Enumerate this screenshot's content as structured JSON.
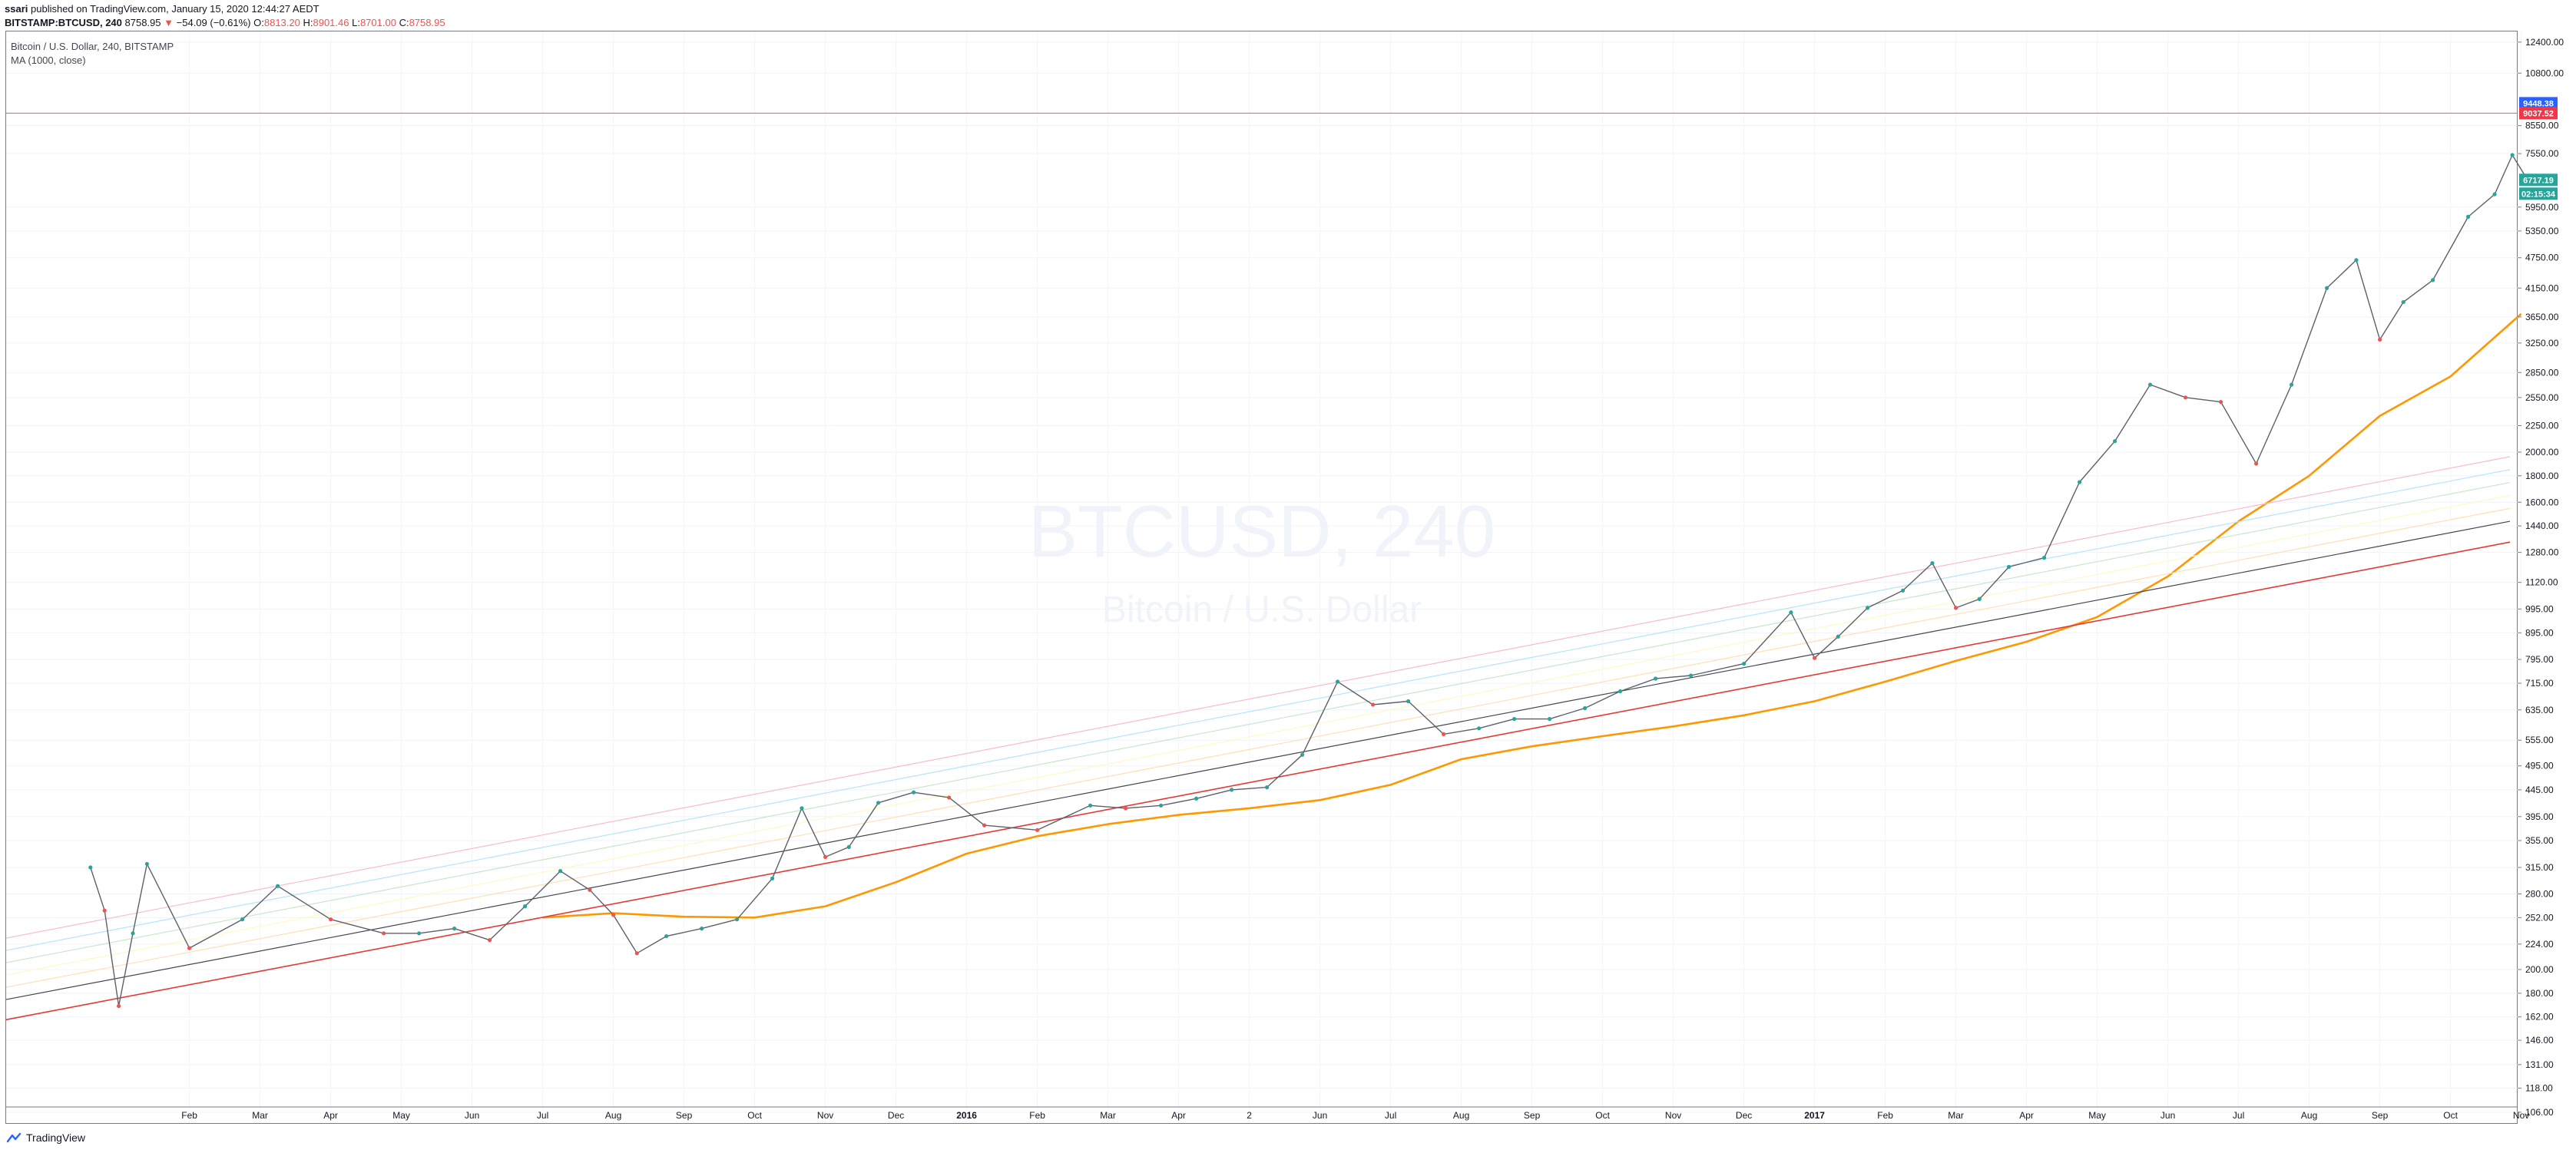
{
  "header": {
    "publisher": "ssari",
    "published_text": "published on TradingView.com, January 15, 2020 12:44:27 AEDT",
    "symbol": "BITSTAMP:BTCUSD, 240",
    "last": "8758.95",
    "arrow": "▼",
    "change": "−54.09 (−0.61%)",
    "o_label": "O:",
    "o_value": "8813.20",
    "h_label": "H:",
    "h_value": "8901.46",
    "l_label": "L:",
    "l_value": "8701.00",
    "c_label": "C:",
    "c_value": "8758.95"
  },
  "legend": {
    "line1": "Bitcoin / U.S. Dollar, 240, BITSTAMP",
    "line2": "MA (1000, close)"
  },
  "watermark": {
    "symbol": "BTCUSD, 240",
    "name": "Bitcoin / U.S. Dollar"
  },
  "footer": {
    "brand": "TradingView"
  },
  "colors": {
    "up": "#26a69a",
    "down": "#ef5350",
    "ma": "#ff9800",
    "support": "#e53935",
    "mid": "#434651",
    "level_red": "#f7525f",
    "badge_blue": "#2962ff",
    "badge_red": "#f23645",
    "badge_teal": "#26a69a"
  },
  "chart_data": {
    "type": "line",
    "title": "Bitcoin / U.S. Dollar, 240, BITSTAMP",
    "y_scale": "log",
    "ylim": [
      101,
      13000
    ],
    "y_ticks": [
      106,
      118,
      131,
      146,
      162,
      180,
      200,
      224,
      252,
      280,
      315,
      355,
      395,
      445,
      495,
      555,
      635,
      715,
      795,
      895,
      995,
      1120,
      1280,
      1440,
      1600,
      1800,
      2000,
      2250,
      2550,
      2850,
      3250,
      3650,
      4150,
      4750,
      5350,
      5950,
      7550,
      8550,
      10800,
      12400
    ],
    "y_tick_labels": [
      "106.00",
      "118.00",
      "131.00",
      "146.00",
      "162.00",
      "180.00",
      "200.00",
      "224.00",
      "252.00",
      "280.00",
      "315.00",
      "355.00",
      "395.00",
      "445.00",
      "495.00",
      "555.00",
      "635.00",
      "715.00",
      "795.00",
      "895.00",
      "995.00",
      "1120.00",
      "1280.00",
      "1440.00",
      "1600.00",
      "1800.00",
      "2000.00",
      "2250.00",
      "2550.00",
      "2850.00",
      "3250.00",
      "3650.00",
      "4150.00",
      "4750.00",
      "5350.00",
      "5950.00",
      "7550.00",
      "8550.00",
      "10800.00",
      "12400.00"
    ],
    "x_labels": [
      "Feb",
      "Mar",
      "Apr",
      "May",
      "Jun",
      "Jul",
      "Aug",
      "Sep",
      "Oct",
      "Nov",
      "Dec",
      "2016",
      "Feb",
      "Mar",
      "Apr",
      "2",
      "Jun",
      "Jul",
      "Aug",
      "Sep",
      "Oct",
      "Nov",
      "Dec",
      "2017",
      "Feb",
      "Mar",
      "Apr",
      "May",
      "Jun",
      "Jul",
      "Aug",
      "Sep",
      "Oct",
      "Nov"
    ],
    "x_label_bold": [
      "2016",
      "2017"
    ],
    "series": [
      {
        "name": "",
        "kind": "price",
        "x": [
          "Jan 2015",
          "Jan 2015",
          "Jan 2015",
          "Jan 2015",
          "Jan 2015",
          "Feb 2015",
          "Mar 2015",
          "Mar 2015",
          "Apr 2015",
          "May 2015",
          "May 2015",
          "Jun 2015",
          "Jun 2015",
          "Jul 2015",
          "Jul 2015",
          "Aug 2015",
          "Aug 2015",
          "Aug 2015",
          "Sep 2015",
          "Sep 2015",
          "Oct 2015",
          "Oct 2015",
          "Nov 2015",
          "Nov 2015",
          "Nov 2015",
          "Dec 2015",
          "Dec 2015",
          "Jan 2016",
          "Jan 2016",
          "Feb 2016",
          "Mar 2016",
          "Mar 2016",
          "Apr 2016",
          "Apr 2016",
          "May 2016",
          "May 2016",
          "Jun 2016",
          "Jun 2016",
          "Jul 2016",
          "Jul 2016",
          "Aug 2016",
          "Aug 2016",
          "Sep 2016",
          "Sep 2016",
          "Oct 2016",
          "Oct 2016",
          "Nov 2016",
          "Nov 2016",
          "Dec 2016",
          "Jan 2017",
          "Jan 2017",
          "Jan 2017",
          "Feb 2017",
          "Feb 2017",
          "Mar 2017",
          "Mar 2017",
          "Mar 2017",
          "Apr 2017",
          "Apr 2017",
          "May 2017",
          "May 2017",
          "Jun 2017",
          "Jun 2017",
          "Jul 2017",
          "Jul 2017",
          "Aug 2017",
          "Aug 2017",
          "Sep 2017",
          "Sep 2017",
          "Sep 2017",
          "Oct 2017",
          "Oct 2017",
          "Nov 2017",
          "Nov 2017",
          "Nov 2017",
          "Nov 2017"
        ],
        "y": [
          315,
          260,
          170,
          235,
          320,
          220,
          250,
          290,
          250,
          235,
          235,
          240,
          228,
          265,
          310,
          285,
          255,
          215,
          232,
          240,
          250,
          300,
          410,
          330,
          345,
          420,
          440,
          430,
          380,
          372,
          415,
          410,
          415,
          428,
          445,
          450,
          520,
          720,
          650,
          660,
          570,
          585,
          610,
          610,
          640,
          690,
          730,
          740,
          780,
          980,
          800,
          880,
          1000,
          1080,
          1220,
          1000,
          1040,
          1200,
          1250,
          1750,
          2100,
          2700,
          2550,
          2500,
          1900,
          2700,
          4150,
          4700,
          3300,
          3900,
          4300,
          5700,
          6300,
          7500,
          6600,
          6717
        ]
      },
      {
        "name": "MA (1000, close)",
        "kind": "ma",
        "x": [
          "Jul 2015",
          "Aug 2015",
          "Sep 2015",
          "Oct 2015",
          "Nov 2015",
          "Dec 2015",
          "Jan 2016",
          "Feb 2016",
          "Mar 2016",
          "Apr 2016",
          "May 2016",
          "Jun 2016",
          "Jul 2016",
          "Aug 2016",
          "Sep 2016",
          "Oct 2016",
          "Nov 2016",
          "Dec 2016",
          "Jan 2017",
          "Feb 2017",
          "Mar 2017",
          "Apr 2017",
          "May 2017",
          "Jun 2017",
          "Jul 2017",
          "Aug 2017",
          "Sep 2017",
          "Oct 2017",
          "Nov 2017"
        ],
        "y": [
          252,
          257,
          253,
          252,
          265,
          295,
          335,
          362,
          382,
          398,
          410,
          425,
          455,
          510,
          540,
          565,
          590,
          620,
          660,
          720,
          790,
          860,
          960,
          1150,
          1470,
          1800,
          2350,
          2800,
          3700
        ]
      },
      {
        "name": "",
        "kind": "support",
        "x": [
          "Jan 2015",
          "Nov 2017"
        ],
        "y": [
          160,
          1340
        ]
      },
      {
        "name": "",
        "kind": "channel-mid",
        "x": [
          "Jan 2015",
          "Nov 2017"
        ],
        "y": [
          175,
          1470
        ]
      },
      {
        "name": "",
        "kind": "channel-upper",
        "x": [
          "Jan 2015",
          "Nov 2017"
        ],
        "y": [
          230,
          1960
        ]
      }
    ],
    "horizontal_levels": [
      9037.52
    ],
    "price_badges": [
      {
        "value": "9448.38",
        "color": "#2962ff"
      },
      {
        "value": "9037.52",
        "color": "#f23645"
      },
      {
        "value": "6717.19",
        "color": "#26a69a"
      },
      {
        "value": "02:15:34",
        "color": "#26a69a"
      }
    ],
    "grid": true,
    "legend": "top-left"
  }
}
